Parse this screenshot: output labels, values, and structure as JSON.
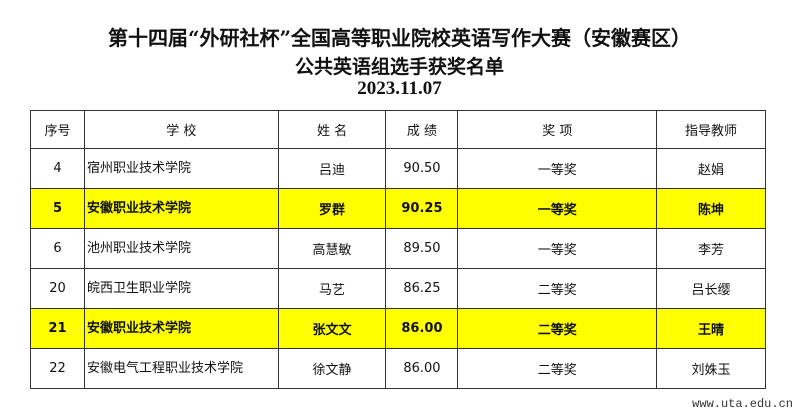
{
  "title_line1": "第十四届“外研社杯”全国高等职业院校英语写作大赛（安徽赛区）",
  "title_line2": "公共英语组选手获奖名单",
  "date": "2023.11.07",
  "headers": [
    "序号",
    "学  校",
    "姓 名",
    "成 绩",
    "奖 项",
    "指导教师"
  ],
  "highlight_color": "#ffff00",
  "rows": [
    {
      "no": "4",
      "school": "宿州职业技术学院",
      "name": "吕迪",
      "score": "90.50",
      "award": "一等奖",
      "teacher": "赵娟",
      "highlight": false
    },
    {
      "no": "5",
      "school": "安徽职业技术学院",
      "name": "罗群",
      "score": "90.25",
      "award": "一等奖",
      "teacher": "陈坤",
      "highlight": true
    },
    {
      "no": "6",
      "school": "池州职业技术学院",
      "name": "高慧敏",
      "score": "89.50",
      "award": "一等奖",
      "teacher": "李芳",
      "highlight": false
    },
    {
      "no": "20",
      "school": "皖西卫生职业学院",
      "name": "马艺",
      "score": "86.25",
      "award": "二等奖",
      "teacher": "吕长缨",
      "highlight": false
    },
    {
      "no": "21",
      "school": "安徽职业技术学院",
      "name": "张文文",
      "score": "86.00",
      "award": "二等奖",
      "teacher": "王晴",
      "highlight": true
    },
    {
      "no": "22",
      "school": "安徽电气工程职业技术学院",
      "name": "徐文静",
      "score": "86.00",
      "award": "二等奖",
      "teacher": "刘姝玉",
      "highlight": false
    }
  ],
  "watermark": "www.uta.edu.cn"
}
